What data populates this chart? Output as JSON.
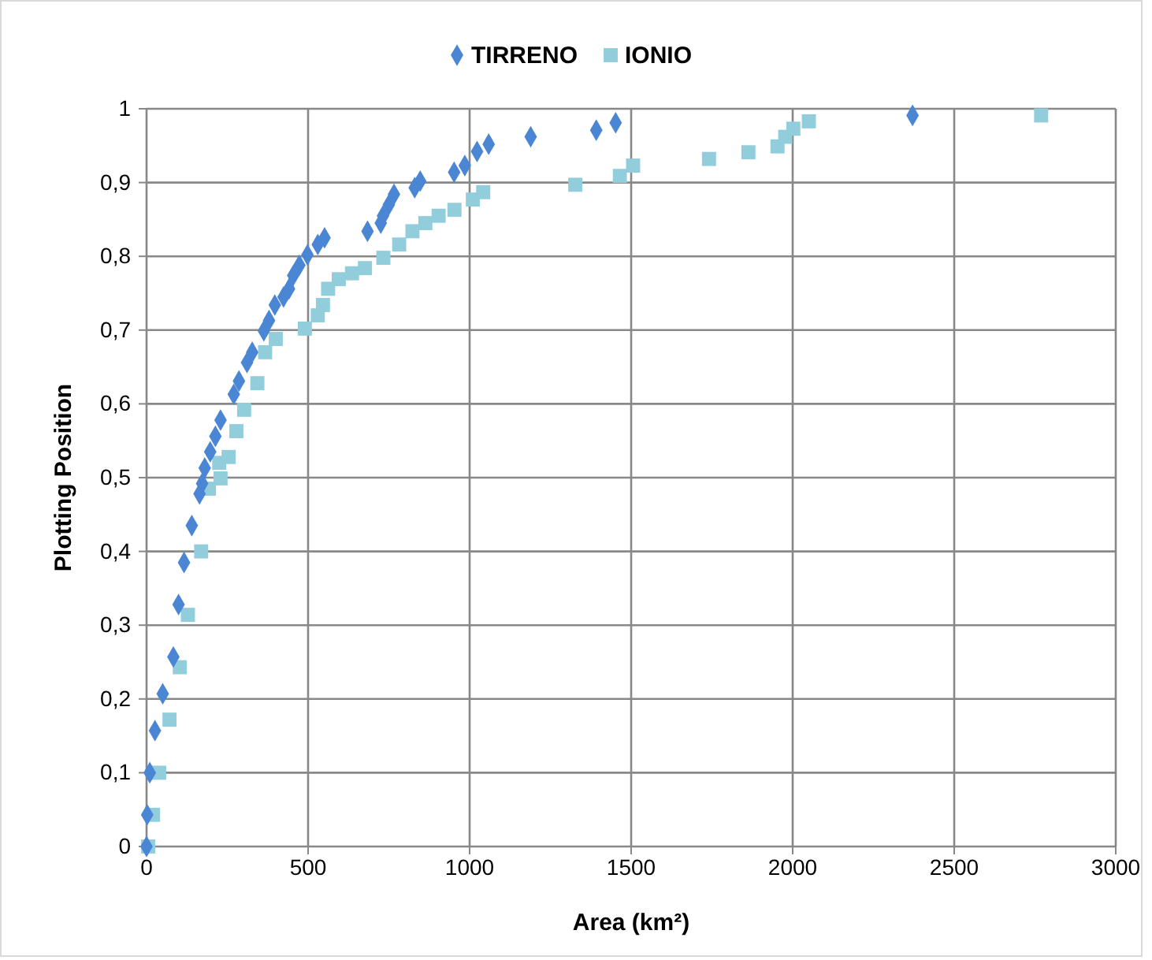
{
  "chart_data": {
    "type": "scatter",
    "xlabel": "Area (km²)",
    "ylabel": "Plotting Position",
    "legend": "top",
    "grid": true,
    "xlim": [
      0,
      3000
    ],
    "xticks": [
      0,
      500,
      1000,
      1500,
      2000,
      2500,
      3000
    ],
    "ylim": [
      0,
      1
    ],
    "yticks": [
      0,
      {
        "value": 0.1,
        "label": "0,1"
      },
      {
        "value": 0.2,
        "label": "0,2"
      },
      {
        "value": 0.3,
        "label": "0,3"
      },
      {
        "value": 0.4,
        "label": "0,4"
      },
      {
        "value": 0.5,
        "label": "0,5"
      },
      {
        "value": 0.6,
        "label": "0,6"
      },
      {
        "value": 0.7,
        "label": "0,7"
      },
      {
        "value": 0.8,
        "label": "0,8"
      },
      {
        "value": 0.9,
        "label": "0,9"
      },
      1
    ],
    "series": [
      {
        "name": "TIRRENO",
        "color": "#4a86d4",
        "marker": "diamond",
        "x": [
          0,
          2,
          10,
          26,
          50,
          83,
          99,
          116,
          140,
          164,
          172,
          180,
          197,
          213,
          229,
          270,
          286,
          311,
          327,
          363,
          379,
          397,
          424,
          441,
          454,
          473,
          498,
          530,
          551,
          684,
          725,
          732,
          750,
          766,
          830,
          847,
          952,
          985,
          1023,
          1059,
          1189,
          1392,
          1452,
          2371
        ],
        "values": [
          0,
          0.043,
          0.1,
          0.157,
          0.207,
          0.257,
          0.328,
          0.385,
          0.435,
          0.478,
          0.492,
          0.513,
          0.535,
          0.556,
          0.578,
          0.613,
          0.631,
          0.656,
          0.67,
          0.699,
          0.713,
          0.734,
          0.745,
          0.756,
          0.774,
          0.788,
          0.802,
          0.816,
          0.825,
          0.834,
          0.845,
          0.855,
          0.87,
          0.884,
          0.893,
          0.902,
          0.914,
          0.923,
          0.942,
          0.952,
          0.962,
          0.971,
          0.981,
          0.991
        ]
      },
      {
        "name": "IONIO",
        "color": "#92cddc",
        "marker": "square",
        "x": [
          5,
          20,
          39,
          71,
          103,
          128,
          169,
          193,
          225,
          229,
          254,
          278,
          302,
          343,
          367,
          400,
          490,
          530,
          546,
          562,
          595,
          636,
          676,
          733,
          782,
          823,
          863,
          904,
          953,
          1010,
          1042,
          1327,
          1465,
          1506,
          1741,
          1863,
          1953,
          1977,
          2002,
          2050,
          2769
        ],
        "values": [
          0,
          0.043,
          0.1,
          0.172,
          0.243,
          0.314,
          0.4,
          0.485,
          0.52,
          0.499,
          0.528,
          0.563,
          0.592,
          0.628,
          0.67,
          0.688,
          0.702,
          0.72,
          0.734,
          0.756,
          0.769,
          0.777,
          0.784,
          0.798,
          0.816,
          0.834,
          0.845,
          0.855,
          0.863,
          0.877,
          0.887,
          0.897,
          0.909,
          0.923,
          0.932,
          0.941,
          0.949,
          0.962,
          0.973,
          0.983,
          0.991
        ]
      }
    ]
  }
}
